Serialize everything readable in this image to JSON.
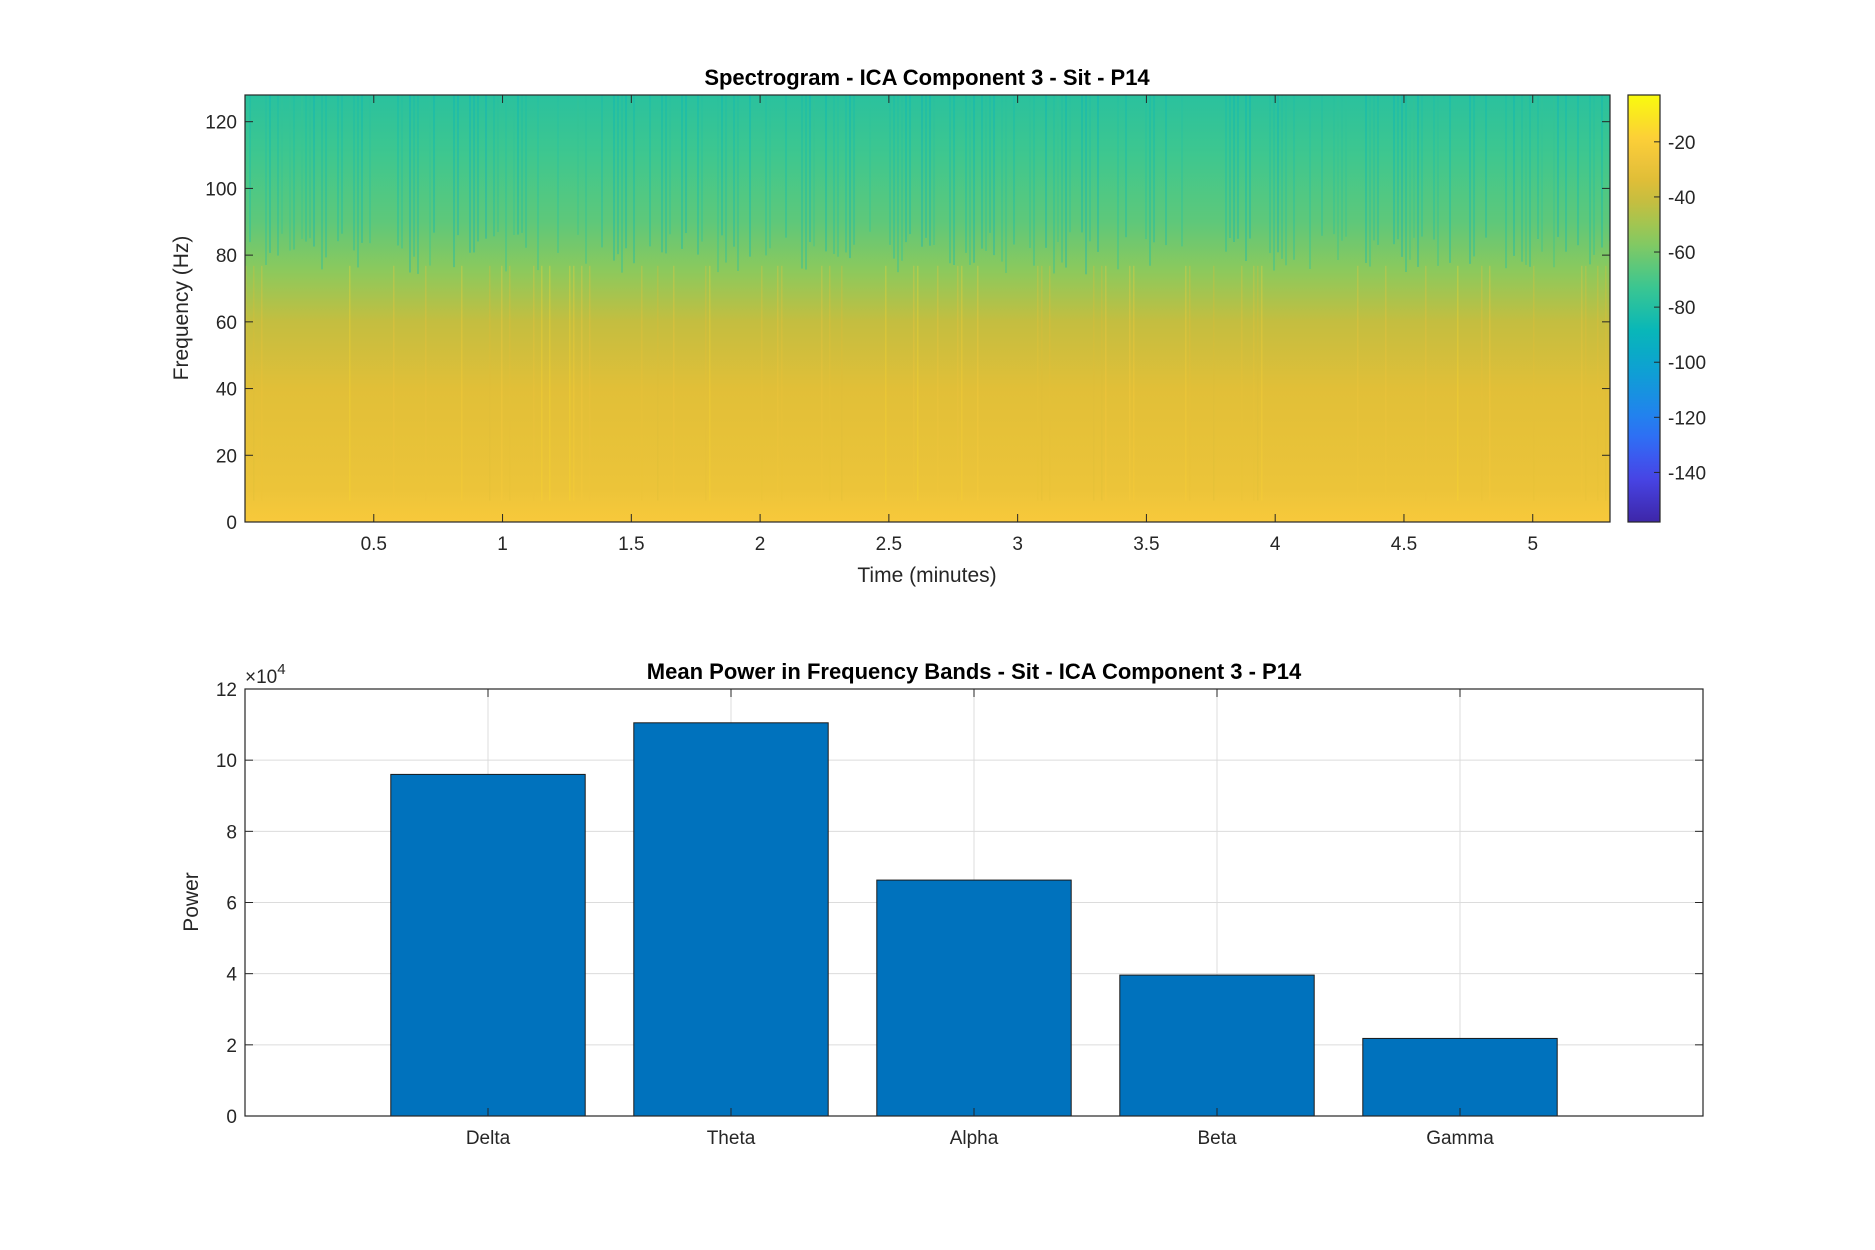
{
  "chart_data": [
    {
      "type": "heatmap",
      "title": "Spectrogram - ICA Component 3 - Sit - P14",
      "xlabel": "Time (minutes)",
      "ylabel": "Frequency (Hz)",
      "xlim": [
        0,
        5.3
      ],
      "ylim": [
        0,
        128
      ],
      "xticks": [
        0.5,
        1,
        1.5,
        2,
        2.5,
        3,
        3.5,
        4,
        4.5,
        5
      ],
      "yticks": [
        0,
        20,
        40,
        60,
        80,
        100,
        120
      ],
      "colorbar": {
        "range": [
          -158,
          -3
        ],
        "ticks": [
          -20,
          -40,
          -60,
          -80,
          -100,
          -120,
          -140
        ],
        "colormap": "parula"
      },
      "power_profile_db": [
        {
          "freq": 0,
          "db": -22
        },
        {
          "freq": 10,
          "db": -28
        },
        {
          "freq": 40,
          "db": -33
        },
        {
          "freq": 60,
          "db": -42
        },
        {
          "freq": 75,
          "db": -55
        },
        {
          "freq": 90,
          "db": -65
        },
        {
          "freq": 110,
          "db": -72
        },
        {
          "freq": 128,
          "db": -78
        }
      ]
    },
    {
      "type": "bar",
      "title": "Mean Power in Frequency Bands - Sit - ICA Component 3 - P14",
      "xlabel": "",
      "ylabel": "Power",
      "exponent_label": "×10",
      "exponent_value": "4",
      "categories": [
        "Delta",
        "Theta",
        "Alpha",
        "Beta",
        "Gamma"
      ],
      "values": [
        96000,
        110500,
        66300,
        39600,
        21800
      ],
      "ylim": [
        0,
        120000
      ],
      "yticks": [
        0,
        2,
        4,
        6,
        8,
        10,
        12
      ],
      "grid": true,
      "bar_color": "#0072BD"
    }
  ]
}
